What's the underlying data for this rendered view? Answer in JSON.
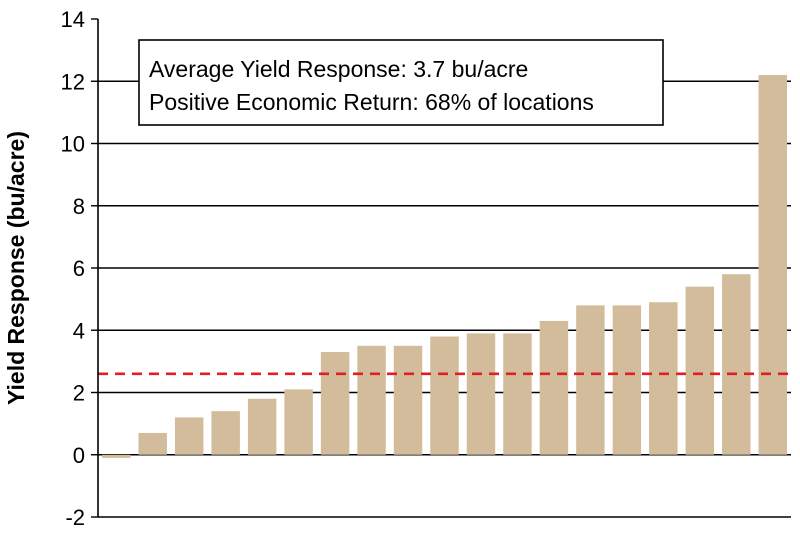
{
  "chart_data": {
    "type": "bar",
    "title": "",
    "xlabel": "",
    "ylabel": "Yield Response (bu/acre)",
    "ylim": [
      -2,
      14
    ],
    "yticks": [
      -2,
      0,
      2,
      4,
      6,
      8,
      10,
      12,
      14
    ],
    "grid": true,
    "bar_color": "#d2bc9c",
    "reference_line": {
      "value": 2.6,
      "color": "#e02020",
      "style": "dashed"
    },
    "values": [
      -0.1,
      0.7,
      1.2,
      1.4,
      1.8,
      2.1,
      3.3,
      3.5,
      3.5,
      3.8,
      3.9,
      3.9,
      4.3,
      4.8,
      4.8,
      4.9,
      5.4,
      5.8,
      12.2
    ],
    "annotation": {
      "lines": [
        "Average Yield Response: 3.7 bu/acre",
        "Positive Economic Return: 68% of locations"
      ]
    }
  }
}
